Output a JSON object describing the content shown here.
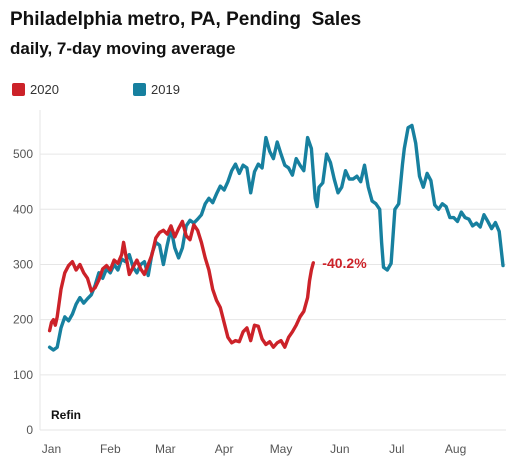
{
  "chart_data": {
    "type": "line",
    "title": "Philadelphia metro, PA, Pending  Sales",
    "subtitle": "daily, 7-day moving average",
    "xlabel": "",
    "ylabel": "",
    "x_axis": {
      "type": "date",
      "range": [
        "2020-01-01",
        "2020-08-31"
      ],
      "ticks": [
        "Jan",
        "Feb",
        "Mar",
        "Apr",
        "May",
        "Jun",
        "Jul",
        "Aug"
      ]
    },
    "y_axis": {
      "range": [
        0,
        580
      ],
      "ticks": [
        0,
        100,
        200,
        300,
        400,
        500
      ]
    },
    "grid": "horizontal",
    "legend_placement": "top-left",
    "annotations": [
      {
        "text": "Refin",
        "position": "bottom-left"
      },
      {
        "text": "-40.2%",
        "series": "2020",
        "position": "end-of-line"
      }
    ],
    "series": [
      {
        "name": "2020",
        "color": "#cc2229",
        "points": [
          [
            "2020-01-05",
            180
          ],
          [
            "2020-01-06",
            195
          ],
          [
            "2020-01-07",
            200
          ],
          [
            "2020-01-08",
            190
          ],
          [
            "2020-01-09",
            205
          ],
          [
            "2020-01-11",
            255
          ],
          [
            "2020-01-13",
            285
          ],
          [
            "2020-01-15",
            298
          ],
          [
            "2020-01-17",
            305
          ],
          [
            "2020-01-19",
            290
          ],
          [
            "2020-01-21",
            300
          ],
          [
            "2020-01-23",
            285
          ],
          [
            "2020-01-25",
            275
          ],
          [
            "2020-01-27",
            252
          ],
          [
            "2020-01-29",
            258
          ],
          [
            "2020-01-31",
            272
          ],
          [
            "2020-02-02",
            292
          ],
          [
            "2020-02-04",
            298
          ],
          [
            "2020-02-06",
            290
          ],
          [
            "2020-02-08",
            308
          ],
          [
            "2020-02-10",
            302
          ],
          [
            "2020-02-12",
            318
          ],
          [
            "2020-02-13",
            340
          ],
          [
            "2020-02-14",
            320
          ],
          [
            "2020-02-16",
            282
          ],
          [
            "2020-02-18",
            295
          ],
          [
            "2020-02-20",
            308
          ],
          [
            "2020-02-22",
            292
          ],
          [
            "2020-02-24",
            282
          ],
          [
            "2020-02-26",
            300
          ],
          [
            "2020-02-28",
            318
          ],
          [
            "2020-03-01",
            348
          ],
          [
            "2020-03-03",
            358
          ],
          [
            "2020-03-05",
            362
          ],
          [
            "2020-03-07",
            355
          ],
          [
            "2020-03-09",
            370
          ],
          [
            "2020-03-11",
            350
          ],
          [
            "2020-03-13",
            365
          ],
          [
            "2020-03-15",
            378
          ],
          [
            "2020-03-17",
            352
          ],
          [
            "2020-03-19",
            345
          ],
          [
            "2020-03-21",
            372
          ],
          [
            "2020-03-23",
            362
          ],
          [
            "2020-03-25",
            340
          ],
          [
            "2020-03-27",
            312
          ],
          [
            "2020-03-29",
            290
          ],
          [
            "2020-03-31",
            255
          ],
          [
            "2020-04-02",
            235
          ],
          [
            "2020-04-04",
            222
          ],
          [
            "2020-04-06",
            195
          ],
          [
            "2020-04-08",
            168
          ],
          [
            "2020-04-10",
            158
          ],
          [
            "2020-04-12",
            162
          ],
          [
            "2020-04-14",
            160
          ],
          [
            "2020-04-16",
            178
          ],
          [
            "2020-04-18",
            185
          ],
          [
            "2020-04-20",
            162
          ],
          [
            "2020-04-22",
            190
          ],
          [
            "2020-04-24",
            188
          ],
          [
            "2020-04-26",
            165
          ],
          [
            "2020-04-28",
            155
          ],
          [
            "2020-04-30",
            160
          ],
          [
            "2020-05-02",
            150
          ],
          [
            "2020-05-04",
            158
          ],
          [
            "2020-05-06",
            162
          ],
          [
            "2020-05-08",
            150
          ],
          [
            "2020-05-10",
            168
          ],
          [
            "2020-05-12",
            178
          ],
          [
            "2020-05-14",
            190
          ],
          [
            "2020-05-16",
            205
          ],
          [
            "2020-05-18",
            215
          ],
          [
            "2020-05-20",
            240
          ],
          [
            "2020-05-21",
            270
          ],
          [
            "2020-05-22",
            290
          ],
          [
            "2020-05-23",
            303
          ]
        ]
      },
      {
        "name": "2019",
        "color": "#17809f",
        "points": [
          [
            "2020-01-05",
            150
          ],
          [
            "2020-01-07",
            145
          ],
          [
            "2020-01-09",
            150
          ],
          [
            "2020-01-11",
            185
          ],
          [
            "2020-01-13",
            205
          ],
          [
            "2020-01-15",
            198
          ],
          [
            "2020-01-17",
            210
          ],
          [
            "2020-01-19",
            228
          ],
          [
            "2020-01-21",
            240
          ],
          [
            "2020-01-23",
            230
          ],
          [
            "2020-01-25",
            238
          ],
          [
            "2020-01-27",
            245
          ],
          [
            "2020-01-29",
            262
          ],
          [
            "2020-01-31",
            285
          ],
          [
            "2020-02-02",
            275
          ],
          [
            "2020-02-04",
            292
          ],
          [
            "2020-02-06",
            285
          ],
          [
            "2020-02-08",
            300
          ],
          [
            "2020-02-10",
            290
          ],
          [
            "2020-02-12",
            310
          ],
          [
            "2020-02-14",
            305
          ],
          [
            "2020-02-16",
            318
          ],
          [
            "2020-02-18",
            295
          ],
          [
            "2020-02-20",
            285
          ],
          [
            "2020-02-22",
            300
          ],
          [
            "2020-02-24",
            305
          ],
          [
            "2020-02-26",
            280
          ],
          [
            "2020-02-28",
            320
          ],
          [
            "2020-03-01",
            340
          ],
          [
            "2020-03-03",
            335
          ],
          [
            "2020-03-05",
            300
          ],
          [
            "2020-03-07",
            335
          ],
          [
            "2020-03-09",
            365
          ],
          [
            "2020-03-11",
            330
          ],
          [
            "2020-03-13",
            312
          ],
          [
            "2020-03-15",
            330
          ],
          [
            "2020-03-17",
            370
          ],
          [
            "2020-03-19",
            380
          ],
          [
            "2020-03-21",
            375
          ],
          [
            "2020-03-23",
            382
          ],
          [
            "2020-03-25",
            390
          ],
          [
            "2020-03-27",
            410
          ],
          [
            "2020-03-29",
            420
          ],
          [
            "2020-03-31",
            412
          ],
          [
            "2020-04-02",
            428
          ],
          [
            "2020-04-04",
            442
          ],
          [
            "2020-04-06",
            435
          ],
          [
            "2020-04-08",
            450
          ],
          [
            "2020-04-10",
            470
          ],
          [
            "2020-04-12",
            482
          ],
          [
            "2020-04-14",
            465
          ],
          [
            "2020-04-16",
            480
          ],
          [
            "2020-04-18",
            475
          ],
          [
            "2020-04-20",
            430
          ],
          [
            "2020-04-22",
            468
          ],
          [
            "2020-04-24",
            482
          ],
          [
            "2020-04-26",
            475
          ],
          [
            "2020-04-28",
            530
          ],
          [
            "2020-04-30",
            505
          ],
          [
            "2020-05-02",
            492
          ],
          [
            "2020-05-04",
            522
          ],
          [
            "2020-05-06",
            500
          ],
          [
            "2020-05-08",
            480
          ],
          [
            "2020-05-10",
            475
          ],
          [
            "2020-05-12",
            462
          ],
          [
            "2020-05-14",
            492
          ],
          [
            "2020-05-16",
            480
          ],
          [
            "2020-05-18",
            470
          ],
          [
            "2020-05-20",
            530
          ],
          [
            "2020-05-22",
            510
          ],
          [
            "2020-05-24",
            420
          ],
          [
            "2020-05-25",
            405
          ],
          [
            "2020-05-26",
            440
          ],
          [
            "2020-05-28",
            448
          ],
          [
            "2020-05-30",
            500
          ],
          [
            "2020-06-01",
            485
          ],
          [
            "2020-06-03",
            455
          ],
          [
            "2020-06-05",
            430
          ],
          [
            "2020-06-07",
            440
          ],
          [
            "2020-06-09",
            470
          ],
          [
            "2020-06-11",
            455
          ],
          [
            "2020-06-13",
            455
          ],
          [
            "2020-06-15",
            460
          ],
          [
            "2020-06-17",
            450
          ],
          [
            "2020-06-19",
            480
          ],
          [
            "2020-06-21",
            440
          ],
          [
            "2020-06-23",
            415
          ],
          [
            "2020-06-25",
            410
          ],
          [
            "2020-06-27",
            400
          ],
          [
            "2020-06-28",
            340
          ],
          [
            "2020-06-29",
            295
          ],
          [
            "2020-07-01",
            290
          ],
          [
            "2020-07-03",
            302
          ],
          [
            "2020-07-05",
            400
          ],
          [
            "2020-07-07",
            410
          ],
          [
            "2020-07-09",
            482
          ],
          [
            "2020-07-10",
            510
          ],
          [
            "2020-07-12",
            548
          ],
          [
            "2020-07-14",
            552
          ],
          [
            "2020-07-16",
            520
          ],
          [
            "2020-07-18",
            460
          ],
          [
            "2020-07-20",
            440
          ],
          [
            "2020-07-22",
            465
          ],
          [
            "2020-07-24",
            452
          ],
          [
            "2020-07-26",
            408
          ],
          [
            "2020-07-28",
            400
          ],
          [
            "2020-07-30",
            410
          ],
          [
            "2020-08-01",
            405
          ],
          [
            "2020-08-03",
            385
          ],
          [
            "2020-08-05",
            385
          ],
          [
            "2020-08-07",
            378
          ],
          [
            "2020-08-09",
            395
          ],
          [
            "2020-08-11",
            385
          ],
          [
            "2020-08-13",
            382
          ],
          [
            "2020-08-15",
            370
          ],
          [
            "2020-08-17",
            375
          ],
          [
            "2020-08-19",
            368
          ],
          [
            "2020-08-21",
            390
          ],
          [
            "2020-08-23",
            378
          ],
          [
            "2020-08-25",
            365
          ],
          [
            "2020-08-27",
            376
          ],
          [
            "2020-08-29",
            360
          ],
          [
            "2020-08-31",
            298
          ]
        ]
      }
    ]
  }
}
